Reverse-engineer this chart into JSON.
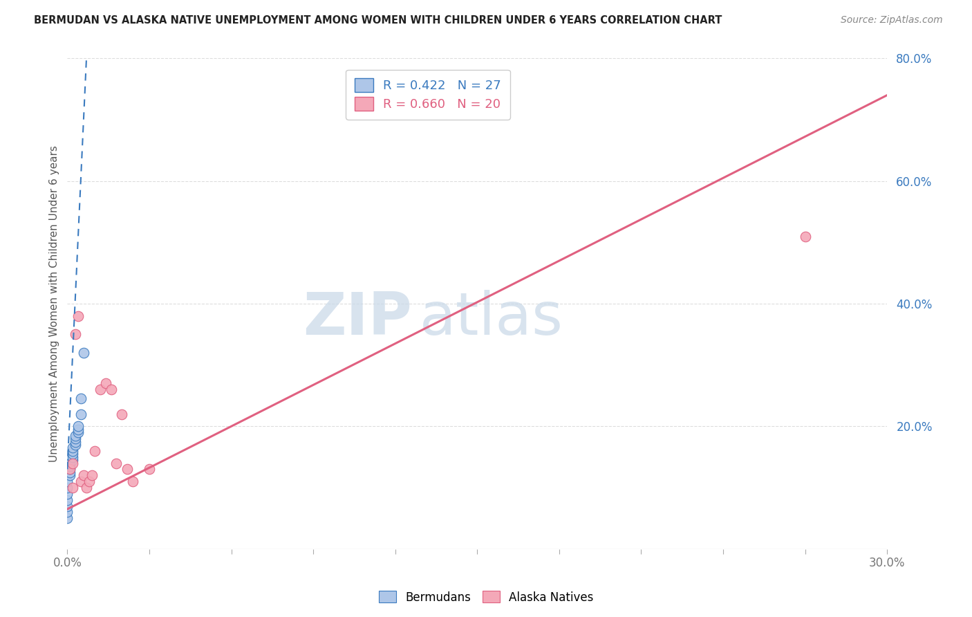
{
  "title": "BERMUDAN VS ALASKA NATIVE UNEMPLOYMENT AMONG WOMEN WITH CHILDREN UNDER 6 YEARS CORRELATION CHART",
  "source": "Source: ZipAtlas.com",
  "ylabel": "Unemployment Among Women with Children Under 6 years",
  "xlim": [
    0.0,
    0.3
  ],
  "ylim": [
    0.0,
    0.8
  ],
  "yticks_right": [
    0.0,
    0.2,
    0.4,
    0.6,
    0.8
  ],
  "ytick_labels_right": [
    "",
    "20.0%",
    "40.0%",
    "60.0%",
    "80.0%"
  ],
  "xticks": [
    0.0,
    0.03,
    0.06,
    0.09,
    0.12,
    0.15,
    0.18,
    0.21,
    0.24,
    0.27,
    0.3
  ],
  "bermudans_x": [
    0.0,
    0.0,
    0.0,
    0.0,
    0.0,
    0.0,
    0.0,
    0.001,
    0.001,
    0.001,
    0.001,
    0.001,
    0.002,
    0.002,
    0.002,
    0.002,
    0.002,
    0.003,
    0.003,
    0.003,
    0.003,
    0.004,
    0.004,
    0.004,
    0.005,
    0.005,
    0.006
  ],
  "bermudans_y": [
    0.05,
    0.06,
    0.07,
    0.08,
    0.09,
    0.1,
    0.11,
    0.12,
    0.125,
    0.13,
    0.135,
    0.14,
    0.145,
    0.15,
    0.155,
    0.16,
    0.165,
    0.17,
    0.175,
    0.18,
    0.185,
    0.19,
    0.195,
    0.2,
    0.22,
    0.245,
    0.32
  ],
  "alaska_x": [
    0.001,
    0.002,
    0.002,
    0.003,
    0.004,
    0.005,
    0.006,
    0.007,
    0.008,
    0.009,
    0.01,
    0.012,
    0.014,
    0.016,
    0.018,
    0.02,
    0.022,
    0.024,
    0.03,
    0.27
  ],
  "alaska_y": [
    0.13,
    0.1,
    0.14,
    0.35,
    0.38,
    0.11,
    0.12,
    0.1,
    0.11,
    0.12,
    0.16,
    0.26,
    0.27,
    0.26,
    0.14,
    0.22,
    0.13,
    0.11,
    0.13,
    0.51
  ],
  "bermudans_color": "#aec6e8",
  "alaska_color": "#f4a8b8",
  "bermudans_line_color": "#3a7abf",
  "alaska_line_color": "#e06080",
  "legend_r_bermudans": "R = 0.422   N = 27",
  "legend_r_alaska": "R = 0.660   N = 20",
  "bermudans_trend_x": [
    0.0,
    0.007
  ],
  "bermudans_trend_y": [
    0.13,
    0.8
  ],
  "alaska_trend_x": [
    0.0,
    0.3
  ],
  "alaska_trend_y": [
    0.065,
    0.74
  ],
  "background_color": "#ffffff",
  "watermark_text": "ZIPatlas",
  "watermark_color": "#c8d8e8",
  "grid_color": "#dddddd",
  "title_color": "#222222",
  "source_color": "#888888",
  "ylabel_color": "#555555",
  "tick_color": "#777777"
}
